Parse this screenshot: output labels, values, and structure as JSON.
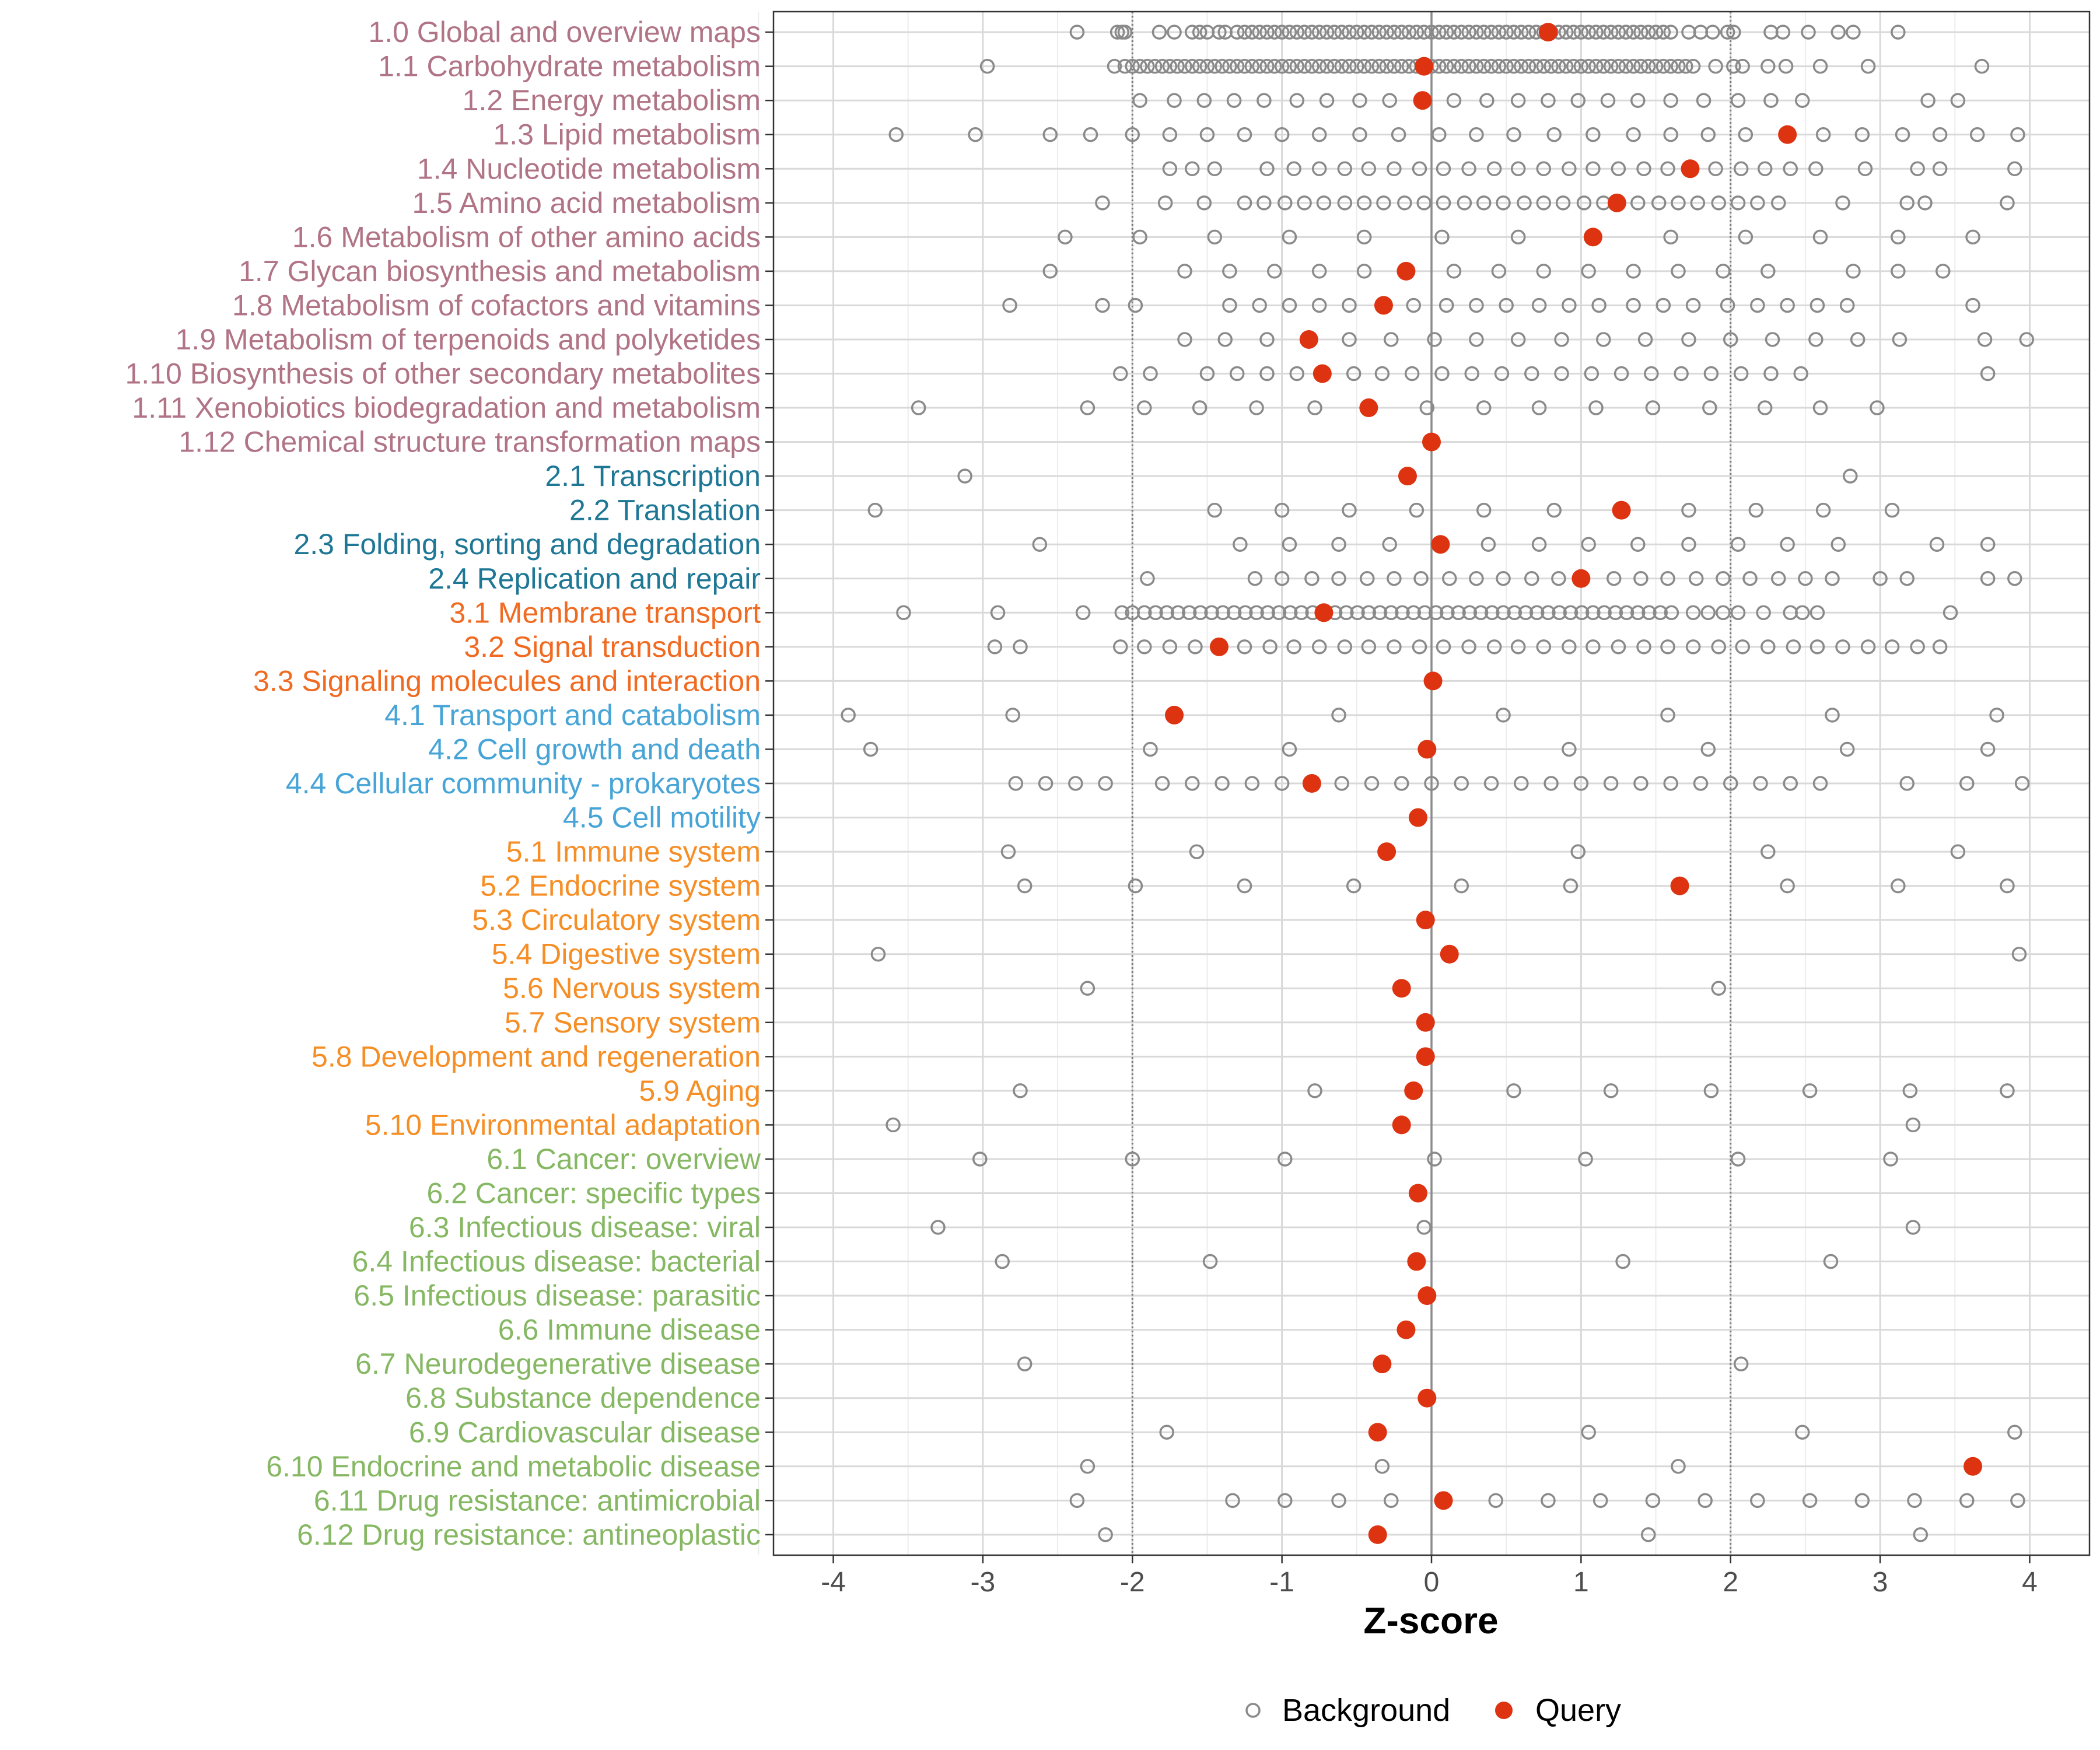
{
  "chart_data": {
    "type": "scatter",
    "xlabel": "Z-score",
    "ylabel": "",
    "xlim": [
      -4.4,
      4.4
    ],
    "x_ticks": [
      -4,
      -3,
      -2,
      -1,
      0,
      1,
      2,
      3,
      4
    ],
    "x_tick_labels": [
      "-4",
      "-3",
      "-2",
      "-1",
      "0",
      "1",
      "2",
      "3",
      "4"
    ],
    "reference_lines": [
      {
        "x": -2,
        "style": "dotted"
      },
      {
        "x": 0,
        "style": "solid"
      },
      {
        "x": 2,
        "style": "dotted"
      }
    ],
    "legend": {
      "position": "bottom",
      "entries": [
        {
          "label": "Background",
          "symbol": "open-circle",
          "color": "#8a8a8a"
        },
        {
          "label": "Query",
          "symbol": "filled-circle",
          "color": "#dd3311"
        }
      ]
    },
    "group_colors": {
      "1": "#b07486",
      "2": "#1f7796",
      "3": "#f06a21",
      "4": "#47a4d6",
      "5": "#f68e26",
      "6": "#86b863"
    },
    "categories": [
      {
        "label": "1.0 Global and overview maps",
        "group": "1",
        "query": 0.78,
        "background": [
          -2.37,
          -2.1,
          -2.07,
          -2.05,
          -1.82,
          -1.72,
          -1.6,
          -1.55,
          -1.5,
          -1.42,
          -1.38,
          1.6,
          1.72,
          1.8,
          1.88,
          1.98,
          2.02,
          2.27,
          2.35,
          2.52,
          2.72,
          2.82,
          3.12
        ],
        "dense": [
          {
            "from": -1.3,
            "to": 1.55,
            "step": 0.05
          }
        ]
      },
      {
        "label": "1.1 Carbohydrate metabolism",
        "group": "1",
        "query": -0.05,
        "background": [
          -2.97,
          -2.12,
          -2.05,
          -2.0,
          -1.95,
          1.75,
          1.9,
          2.02,
          2.08,
          2.25,
          2.37,
          2.6,
          2.92,
          3.68
        ],
        "dense": [
          {
            "from": -1.9,
            "to": 1.7,
            "step": 0.05
          }
        ]
      },
      {
        "label": "1.2 Energy metabolism",
        "group": "1",
        "query": -0.06,
        "background": [
          -1.95,
          -1.72,
          -1.52,
          -1.32,
          -1.12,
          -0.9,
          -0.7,
          -0.48,
          -0.28,
          0.15,
          0.37,
          0.58,
          0.78,
          0.98,
          1.18,
          1.38,
          1.6,
          1.82,
          2.05,
          2.27,
          2.48,
          3.32,
          3.52
        ]
      },
      {
        "label": "1.3 Lipid metabolism",
        "group": "1",
        "query": 2.38,
        "background": [
          -3.58,
          -3.05,
          -2.55,
          -2.28,
          -2.0,
          -1.75,
          -1.5,
          -1.25,
          -1.0,
          -0.75,
          -0.48,
          -0.22,
          0.05,
          0.3,
          0.55,
          0.82,
          1.08,
          1.35,
          1.6,
          1.85,
          2.1,
          2.62,
          2.88,
          3.15,
          3.4,
          3.65,
          3.92
        ]
      },
      {
        "label": "1.4 Nucleotide metabolism",
        "group": "1",
        "query": 1.73,
        "background": [
          -1.75,
          -1.6,
          -1.45,
          -1.1,
          -0.92,
          -0.75,
          -0.58,
          -0.42,
          -0.25,
          -0.08,
          0.08,
          0.25,
          0.42,
          0.58,
          0.75,
          0.92,
          1.08,
          1.25,
          1.42,
          1.58,
          1.9,
          2.07,
          2.23,
          2.4,
          2.57,
          2.9,
          3.25,
          3.4,
          3.9
        ]
      },
      {
        "label": "1.5 Amino acid metabolism",
        "group": "1",
        "query": 1.24,
        "background": [
          -2.2,
          -1.78,
          -1.52,
          -1.25,
          -1.12,
          -0.98,
          -0.85,
          -0.72,
          -0.58,
          -0.45,
          -0.32,
          -0.18,
          -0.05,
          0.08,
          0.22,
          0.35,
          0.48,
          0.62,
          0.75,
          0.88,
          1.02,
          1.15,
          1.38,
          1.52,
          1.65,
          1.78,
          1.92,
          2.05,
          2.18,
          2.32,
          2.75,
          3.18,
          3.3,
          3.85
        ]
      },
      {
        "label": "1.6 Metabolism of other amino acids",
        "group": "1",
        "query": 1.08,
        "background": [
          -2.45,
          -1.95,
          -1.45,
          -0.95,
          -0.45,
          0.07,
          0.58,
          1.6,
          2.1,
          2.6,
          3.12,
          3.62
        ]
      },
      {
        "label": "1.7 Glycan biosynthesis and metabolism",
        "group": "1",
        "query": -0.17,
        "background": [
          -2.55,
          -1.65,
          -1.35,
          -1.05,
          -0.75,
          -0.45,
          0.15,
          0.45,
          0.75,
          1.05,
          1.35,
          1.65,
          1.95,
          2.25,
          2.82,
          3.12,
          3.42
        ]
      },
      {
        "label": "1.8 Metabolism of cofactors and vitamins",
        "group": "1",
        "query": -0.32,
        "background": [
          -2.82,
          -2.2,
          -1.98,
          -1.35,
          -1.15,
          -0.95,
          -0.75,
          -0.55,
          -0.12,
          0.1,
          0.3,
          0.5,
          0.72,
          0.92,
          1.12,
          1.35,
          1.55,
          1.75,
          1.98,
          2.18,
          2.38,
          2.58,
          2.78,
          3.62
        ]
      },
      {
        "label": "1.9 Metabolism of terpenoids and polyketides",
        "group": "1",
        "query": -0.82,
        "background": [
          -1.65,
          -1.38,
          -1.1,
          -0.55,
          -0.27,
          0.02,
          0.3,
          0.58,
          0.87,
          1.15,
          1.43,
          1.72,
          2.0,
          2.28,
          2.57,
          2.85,
          3.13,
          3.7,
          3.98
        ]
      },
      {
        "label": "1.10 Biosynthesis of other secondary metabolites",
        "group": "1",
        "query": -0.73,
        "background": [
          -2.08,
          -1.88,
          -1.5,
          -1.3,
          -1.1,
          -0.9,
          -0.52,
          -0.33,
          -0.13,
          0.07,
          0.27,
          0.47,
          0.67,
          0.87,
          1.07,
          1.27,
          1.47,
          1.67,
          1.87,
          2.07,
          2.27,
          2.47,
          3.72
        ]
      },
      {
        "label": "1.11 Xenobiotics biodegradation and metabolism",
        "group": "1",
        "query": -0.42,
        "background": [
          -3.43,
          -2.3,
          -1.92,
          -1.55,
          -1.17,
          -0.78,
          -0.03,
          0.35,
          0.72,
          1.1,
          1.48,
          1.86,
          2.23,
          2.6,
          2.98
        ]
      },
      {
        "label": "1.12 Chemical structure transformation maps",
        "group": "1",
        "query": 0.0,
        "background": []
      },
      {
        "label": "2.1 Transcription",
        "group": "2",
        "query": -0.16,
        "background": [
          -3.12,
          2.8
        ]
      },
      {
        "label": "2.2 Translation",
        "group": "2",
        "query": 1.27,
        "background": [
          -3.72,
          -1.45,
          -1.0,
          -0.55,
          -0.1,
          0.35,
          0.82,
          1.72,
          2.17,
          2.62,
          3.08
        ]
      },
      {
        "label": "2.3 Folding, sorting and degradation",
        "group": "2",
        "query": 0.06,
        "background": [
          -2.62,
          -1.28,
          -0.95,
          -0.62,
          -0.28,
          0.38,
          0.72,
          1.05,
          1.38,
          1.72,
          2.05,
          2.38,
          2.72,
          3.38,
          3.72
        ]
      },
      {
        "label": "2.4 Replication and repair",
        "group": "2",
        "query": 1.0,
        "background": [
          -1.9,
          -1.18,
          -1.0,
          -0.8,
          -0.62,
          -0.43,
          -0.25,
          -0.07,
          0.12,
          0.3,
          0.48,
          0.67,
          0.85,
          1.22,
          1.4,
          1.58,
          1.77,
          1.95,
          2.13,
          2.32,
          2.5,
          2.68,
          3.0,
          3.18,
          3.72,
          3.9
        ]
      },
      {
        "label": "3.1 Membrane transport",
        "group": "3",
        "query": -0.72,
        "background": [
          -3.53,
          -2.9,
          -2.33,
          -2.07,
          -2.0,
          1.75,
          1.85,
          1.95,
          2.05,
          2.22,
          2.4,
          2.48,
          2.58,
          3.47
        ],
        "dense": [
          {
            "from": -1.92,
            "to": 1.65,
            "step": 0.075
          }
        ]
      },
      {
        "label": "3.2 Signal transduction",
        "group": "3",
        "query": -1.42,
        "background": [
          -2.92,
          -2.75,
          -2.08,
          -1.92,
          -1.75,
          -1.58,
          -1.25,
          -1.08,
          -0.92,
          -0.75,
          -0.58,
          -0.42,
          -0.25,
          -0.08,
          0.08,
          0.25,
          0.42,
          0.58,
          0.75,
          0.92,
          1.08,
          1.25,
          1.42,
          1.58,
          1.75,
          1.92,
          2.08,
          2.25,
          2.42,
          2.58,
          2.75,
          2.92,
          3.08,
          3.25,
          3.4
        ]
      },
      {
        "label": "3.3 Signaling molecules and interaction",
        "group": "3",
        "query": 0.01,
        "background": []
      },
      {
        "label": "4.1 Transport and catabolism",
        "group": "4",
        "query": -1.72,
        "background": [
          -3.9,
          -2.8,
          -0.62,
          0.48,
          1.58,
          2.68,
          3.78
        ]
      },
      {
        "label": "4.2 Cell growth and death",
        "group": "4",
        "query": -0.03,
        "background": [
          -3.75,
          -1.88,
          -0.95,
          0.92,
          1.85,
          2.78,
          3.72
        ]
      },
      {
        "label": "4.4 Cellular community - prokaryotes",
        "group": "4",
        "query": -0.8,
        "background": [
          -2.78,
          -2.58,
          -2.38,
          -2.18,
          -1.8,
          -1.6,
          -1.4,
          -1.2,
          -1.0,
          -0.6,
          -0.4,
          -0.2,
          0.0,
          0.2,
          0.4,
          0.6,
          0.8,
          1.0,
          1.2,
          1.4,
          1.6,
          1.8,
          2.0,
          2.2,
          2.4,
          2.6,
          3.18,
          3.58,
          3.95
        ]
      },
      {
        "label": "4.5 Cell motility",
        "group": "4",
        "query": -0.09,
        "background": []
      },
      {
        "label": "5.1 Immune system",
        "group": "5",
        "query": -0.3,
        "background": [
          -2.83,
          -1.57,
          0.98,
          2.25,
          3.52
        ]
      },
      {
        "label": "5.2 Endocrine system",
        "group": "5",
        "query": 1.66,
        "background": [
          -2.72,
          -1.98,
          -1.25,
          -0.52,
          0.2,
          0.93,
          2.38,
          3.12,
          3.85
        ]
      },
      {
        "label": "5.3 Circulatory system",
        "group": "5",
        "query": -0.04,
        "background": []
      },
      {
        "label": "5.4 Digestive system",
        "group": "5",
        "query": 0.12,
        "background": [
          -3.7,
          3.93
        ]
      },
      {
        "label": "5.6 Nervous system",
        "group": "5",
        "query": -0.2,
        "background": [
          -2.3,
          1.92
        ]
      },
      {
        "label": "5.7 Sensory system",
        "group": "5",
        "query": -0.04,
        "background": []
      },
      {
        "label": "5.8 Development and regeneration",
        "group": "5",
        "query": -0.04,
        "background": []
      },
      {
        "label": "5.9 Aging",
        "group": "5",
        "query": -0.12,
        "background": [
          -2.75,
          -0.78,
          0.55,
          1.2,
          1.87,
          2.53,
          3.2,
          3.85
        ]
      },
      {
        "label": "5.10 Environmental adaptation",
        "group": "5",
        "query": -0.2,
        "background": [
          -3.6,
          3.22
        ]
      },
      {
        "label": "6.1 Cancer: overview",
        "group": "6",
        "query": null,
        "background": [
          -3.02,
          -2.0,
          -0.98,
          0.02,
          1.03,
          2.05,
          3.07
        ]
      },
      {
        "label": "6.2 Cancer: specific types",
        "group": "6",
        "query": -0.09,
        "background": []
      },
      {
        "label": "6.3 Infectious disease: viral",
        "group": "6",
        "query": null,
        "background": [
          -3.3,
          -0.05,
          3.22
        ]
      },
      {
        "label": "6.4 Infectious disease: bacterial",
        "group": "6",
        "query": -0.1,
        "background": [
          -2.87,
          -1.48,
          1.28,
          2.67
        ]
      },
      {
        "label": "6.5 Infectious disease: parasitic",
        "group": "6",
        "query": -0.03,
        "background": []
      },
      {
        "label": "6.6 Immune disease",
        "group": "6",
        "query": -0.17,
        "background": []
      },
      {
        "label": "6.7 Neurodegenerative disease",
        "group": "6",
        "query": -0.33,
        "background": [
          -2.72,
          2.07
        ]
      },
      {
        "label": "6.8 Substance dependence",
        "group": "6",
        "query": -0.03,
        "background": []
      },
      {
        "label": "6.9 Cardiovascular disease",
        "group": "6",
        "query": -0.36,
        "background": [
          -1.77,
          1.05,
          2.48,
          3.9
        ]
      },
      {
        "label": "6.10 Endocrine and metabolic disease",
        "group": "6",
        "query": 3.62,
        "background": [
          -2.3,
          -0.33,
          1.65
        ]
      },
      {
        "label": "6.11 Drug resistance: antimicrobial",
        "group": "6",
        "query": 0.08,
        "background": [
          -2.37,
          -1.33,
          -0.98,
          -0.62,
          -0.27,
          0.43,
          0.78,
          1.13,
          1.48,
          1.83,
          2.18,
          2.53,
          2.88,
          3.23,
          3.58,
          3.92
        ]
      },
      {
        "label": "6.12 Drug resistance: antineoplastic",
        "group": "6",
        "query": -0.36,
        "background": [
          -2.18,
          1.45,
          3.27
        ]
      }
    ]
  }
}
